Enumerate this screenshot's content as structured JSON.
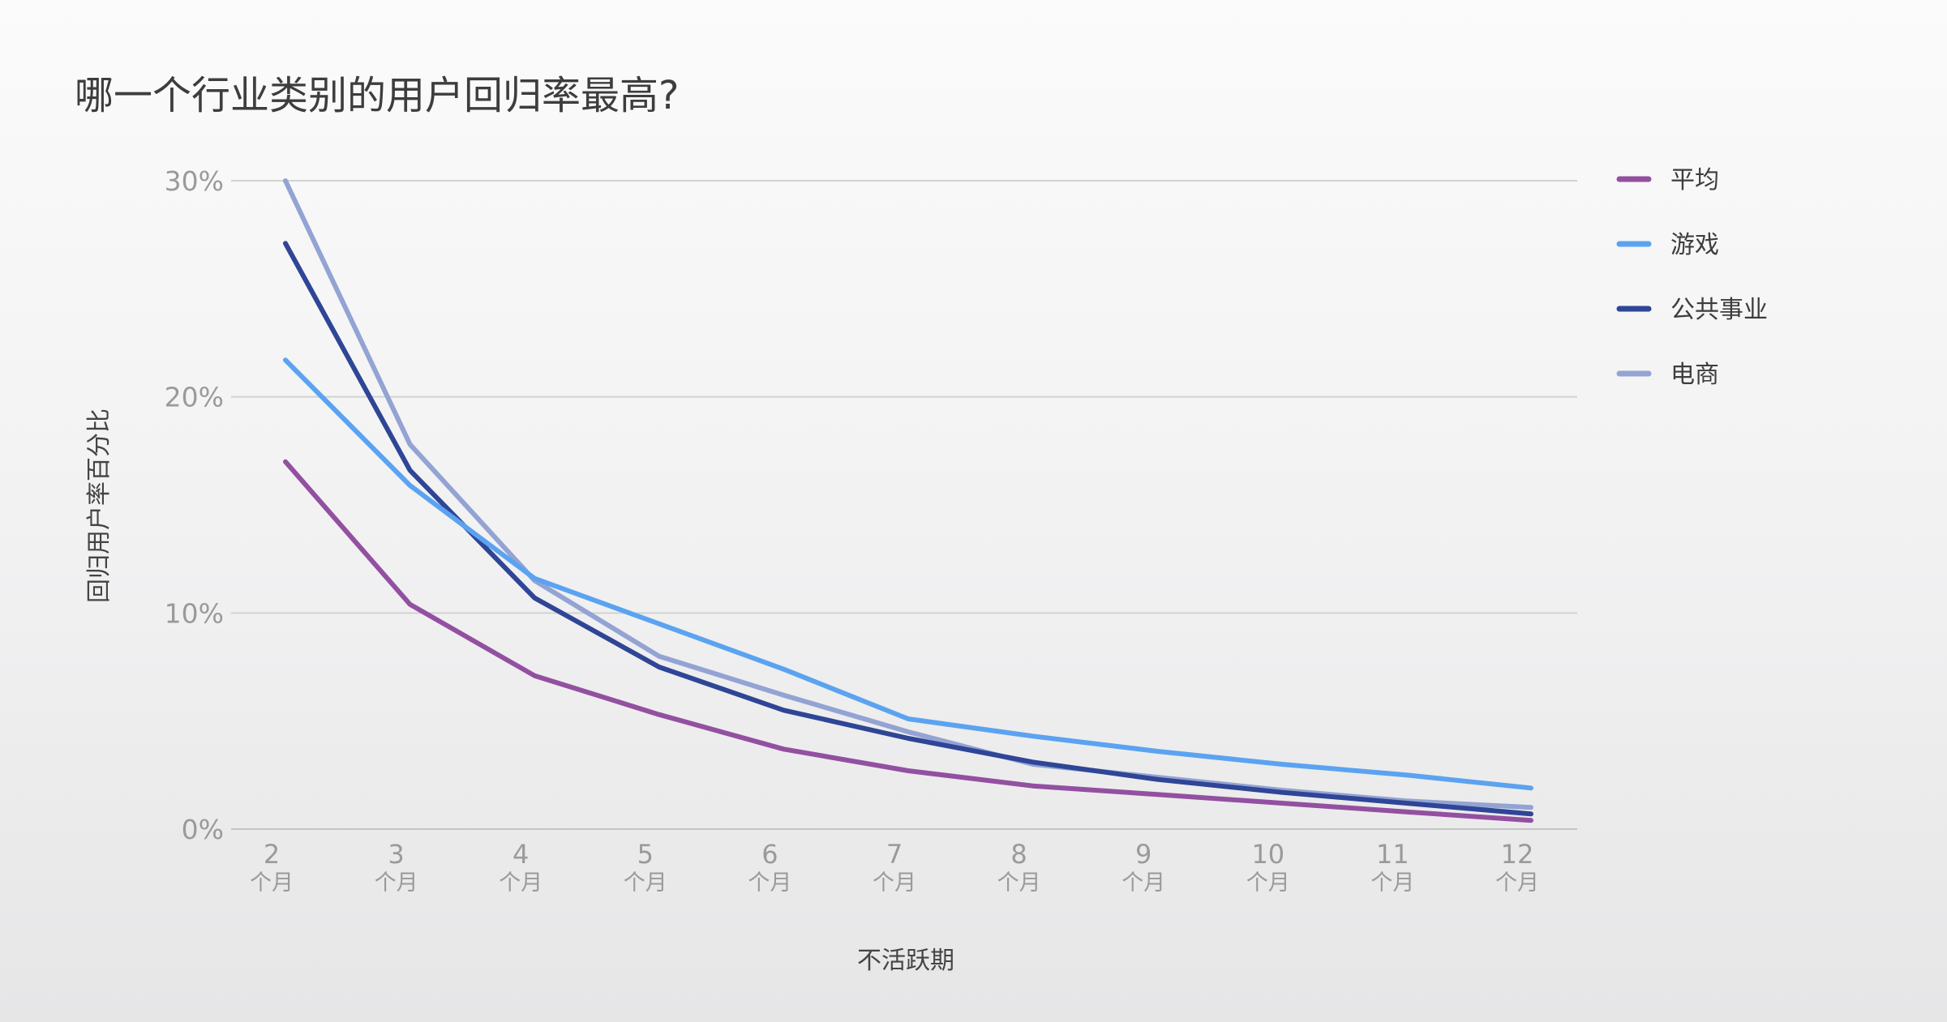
{
  "chart_data": {
    "type": "line",
    "title": "哪一个行业类别的用户回归率最高?",
    "xlabel": "不活跃期",
    "ylabel": "回归用户率百分比",
    "x": [
      2,
      3,
      4,
      5,
      6,
      7,
      8,
      9,
      10,
      11,
      12
    ],
    "x_unit": "个月",
    "ylim": [
      0,
      30
    ],
    "yticks": [
      0,
      10,
      20,
      30
    ],
    "ytick_labels": [
      "0%",
      "10%",
      "20%",
      "30%"
    ],
    "grid": true,
    "legend_position": "top-right",
    "series": [
      {
        "name": "平均",
        "color": "#9350a1",
        "values": [
          17.0,
          10.4,
          7.1,
          5.3,
          3.7,
          2.7,
          2.0,
          1.6,
          1.2,
          0.8,
          0.4
        ]
      },
      {
        "name": "游戏",
        "color": "#5ba3f0",
        "values": [
          21.7,
          15.9,
          11.6,
          9.5,
          7.4,
          5.1,
          4.3,
          3.6,
          3.0,
          2.5,
          1.9
        ]
      },
      {
        "name": "公共事业",
        "color": "#2f4596",
        "values": [
          27.1,
          16.6,
          10.7,
          7.5,
          5.5,
          4.2,
          3.1,
          2.3,
          1.7,
          1.2,
          0.7
        ]
      },
      {
        "name": "电商",
        "color": "#93a3d3",
        "values": [
          30.0,
          17.8,
          11.5,
          8.0,
          6.2,
          4.5,
          3.0,
          2.4,
          1.8,
          1.3,
          1.0
        ]
      }
    ]
  }
}
